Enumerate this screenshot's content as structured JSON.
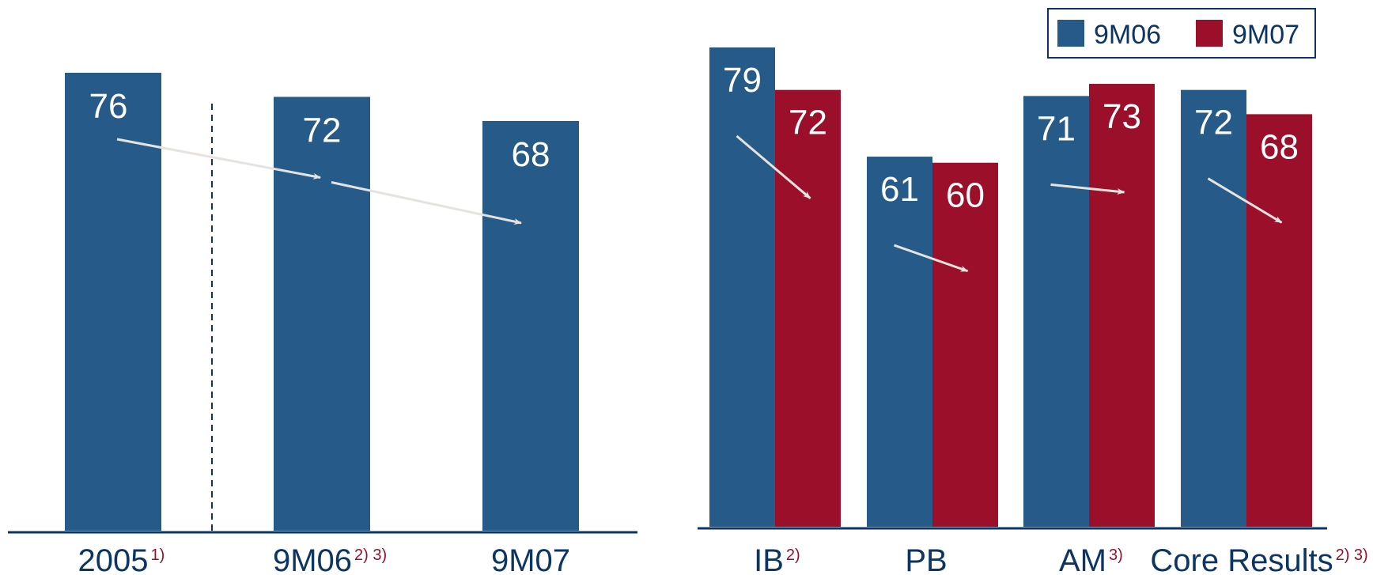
{
  "colors": {
    "blue": "#265a88",
    "red": "#9b0f2b",
    "axis": "#0d3563",
    "arrow": "#e6e3df",
    "legend_border": "#0d3563",
    "footnote": "#9b0f2b",
    "text_white": "#ffffff",
    "text_dark": "#0d3563"
  },
  "chart_data": [
    {
      "type": "bar",
      "categories": [
        "2005",
        "9M06",
        "9M07"
      ],
      "category_footnotes": [
        "1)",
        "2) 3)",
        ""
      ],
      "values": [
        76,
        72,
        68
      ],
      "data_labels": [
        "76",
        "72",
        "68"
      ],
      "ylim": [
        0,
        80
      ],
      "grid": false,
      "trend_arrows": true,
      "divider_after_category": "2005"
    },
    {
      "type": "bar",
      "categories": [
        "IB",
        "PB",
        "AM",
        "Core Results"
      ],
      "category_footnotes": [
        "2)",
        "",
        "3)",
        "2) 3)"
      ],
      "series": [
        {
          "name": "9M06",
          "values": [
            79,
            61,
            71,
            72
          ],
          "data_labels": [
            "79",
            "61",
            "71",
            "72"
          ]
        },
        {
          "name": "9M07",
          "values": [
            72,
            60,
            73,
            68
          ],
          "data_labels": [
            "72",
            "60",
            "73",
            "68"
          ]
        }
      ],
      "ylim": [
        0,
        80
      ],
      "grid": false,
      "legend": "top-right",
      "trend_arrows": true
    }
  ]
}
